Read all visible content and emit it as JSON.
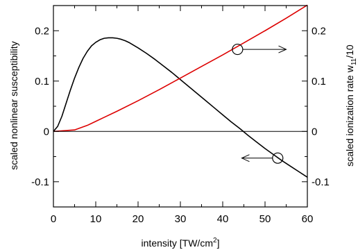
{
  "chart_data": {
    "type": "line",
    "xlabel": {
      "base": "intensity [TW/cm",
      "sup": "2",
      "tail": "]"
    },
    "ylabel_left": "scaled nonlinear susceptibility",
    "ylabel_right": {
      "base": "scaled ionization rate w",
      "sub": "11",
      "tail": "/10"
    },
    "xlim": [
      0,
      60
    ],
    "ylim": [
      -0.15,
      0.25
    ],
    "x_ticks": [
      {
        "v": 0,
        "label": "0"
      },
      {
        "v": 10,
        "label": "10"
      },
      {
        "v": 20,
        "label": "20"
      },
      {
        "v": 30,
        "label": "30"
      },
      {
        "v": 40,
        "label": "40"
      },
      {
        "v": 50,
        "label": "50"
      },
      {
        "v": 60,
        "label": "60"
      }
    ],
    "y_ticks": [
      {
        "v": -0.1,
        "label": "-0.1"
      },
      {
        "v": 0,
        "label": "0"
      },
      {
        "v": 0.1,
        "label": "0.1"
      },
      {
        "v": 0.2,
        "label": "0.2"
      }
    ],
    "x_minor_step": 5,
    "y_minor_step": 0.05,
    "zero_line": true,
    "series": [
      {
        "color": "#000000",
        "axis": "left",
        "x": [
          0,
          1,
          2,
          3,
          4,
          5,
          6,
          7,
          8,
          9,
          10,
          11,
          12,
          13,
          14,
          15,
          16,
          17,
          18,
          19,
          20,
          22,
          24,
          26,
          28,
          30,
          32,
          34,
          36,
          38,
          40,
          42,
          44,
          46,
          48,
          50,
          52,
          54,
          56,
          58,
          60
        ],
        "y": [
          0.0,
          0.01,
          0.03,
          0.056,
          0.082,
          0.106,
          0.127,
          0.145,
          0.159,
          0.17,
          0.177,
          0.182,
          0.185,
          0.186,
          0.186,
          0.185,
          0.183,
          0.18,
          0.176,
          0.171,
          0.166,
          0.155,
          0.143,
          0.13,
          0.117,
          0.103,
          0.089,
          0.075,
          0.061,
          0.047,
          0.033,
          0.019,
          0.006,
          -0.008,
          -0.021,
          -0.034,
          -0.046,
          -0.058,
          -0.069,
          -0.08,
          -0.091
        ]
      },
      {
        "color": "#dd0000",
        "axis": "right",
        "x": [
          0,
          5,
          8,
          10,
          12,
          15,
          20,
          25,
          30,
          35,
          40,
          45,
          50,
          55,
          60
        ],
        "y": [
          0.0,
          0.003,
          0.012,
          0.02,
          0.028,
          0.04,
          0.061,
          0.083,
          0.106,
          0.129,
          0.152,
          0.176,
          0.2,
          0.225,
          0.251
        ]
      }
    ],
    "markers": [
      {
        "series": 1,
        "x": 43.5,
        "y": 0.163,
        "arrow_to_x": 55.0
      },
      {
        "series": 0,
        "x": 53.0,
        "y": -0.053,
        "arrow_to_x": 44.5
      }
    ]
  }
}
